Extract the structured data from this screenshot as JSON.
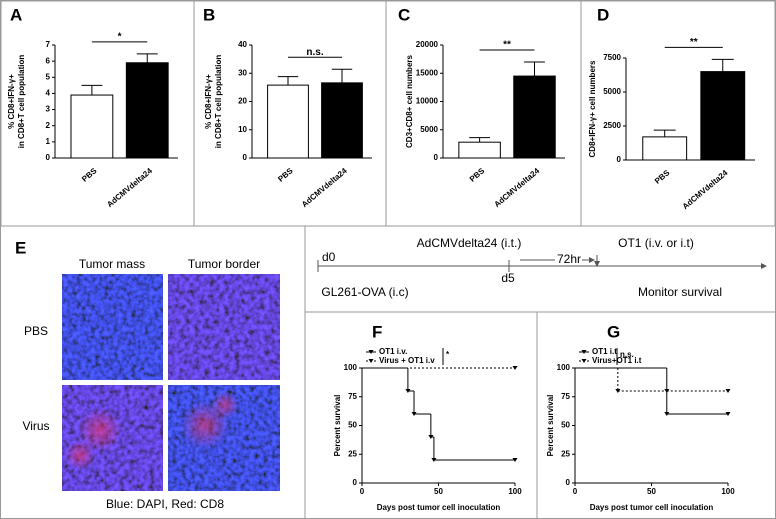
{
  "chart_data": [
    {
      "type": "bar",
      "panel": "A",
      "y_label": [
        "% CD8+IFN-γ+",
        "in CD8+T cell population"
      ],
      "categories": [
        "PBS",
        "AdCMVdelta24"
      ],
      "values": [
        3.9,
        5.9
      ],
      "errors": [
        0.6,
        0.55
      ],
      "colors": [
        "#ffffff",
        "#000000"
      ],
      "ylim": [
        0,
        7
      ],
      "yticks": [
        0,
        1,
        2,
        3,
        4,
        5,
        6,
        7
      ],
      "significance": "*"
    },
    {
      "type": "bar",
      "panel": "B",
      "y_label": [
        "% CD8+IFN-γ+",
        "in CD8+T cell population"
      ],
      "categories": [
        "PBS",
        "AdCMVdelta24"
      ],
      "values": [
        25.8,
        26.6
      ],
      "errors": [
        3,
        4.8
      ],
      "colors": [
        "#ffffff",
        "#000000"
      ],
      "ylim": [
        0,
        40
      ],
      "yticks": [
        0,
        10,
        20,
        30,
        40
      ],
      "significance": "n.s."
    },
    {
      "type": "bar",
      "panel": "C",
      "y_label": [
        "CD3+CD8+ cell numbers"
      ],
      "categories": [
        "PBS",
        "AdCMVdelta24"
      ],
      "values": [
        2800,
        14500
      ],
      "errors": [
        800,
        2500
      ],
      "colors": [
        "#ffffff",
        "#000000"
      ],
      "ylim": [
        0,
        20000
      ],
      "yticks": [
        0,
        5000,
        10000,
        15000,
        20000
      ],
      "significance": "**"
    },
    {
      "type": "bar",
      "panel": "D",
      "y_label": [
        "CD8+IFN-γ+ cell numbers"
      ],
      "categories": [
        "PBS",
        "AdCMVdelta24"
      ],
      "values": [
        1700,
        6500
      ],
      "errors": [
        500,
        900
      ],
      "colors": [
        "#ffffff",
        "#000000"
      ],
      "ylim": [
        0,
        7500
      ],
      "yticks": [
        0,
        2500,
        5000,
        7500
      ],
      "significance": "**"
    },
    {
      "type": "step",
      "panel": "F",
      "x_label": "Days post tumor cell inoculation",
      "y_label": [
        "Percent survival"
      ],
      "xlim": [
        0,
        100
      ],
      "xticks": [
        0,
        50,
        100
      ],
      "ylim": [
        0,
        100
      ],
      "yticks": [
        0,
        25,
        50,
        75,
        100
      ],
      "significance": "*",
      "series": [
        {
          "name": "OT1 i.v.",
          "color": "#000000",
          "line_style": "solid",
          "x": [
            0,
            30,
            34,
            45,
            47,
            100
          ],
          "values": [
            100,
            80,
            60,
            40,
            20,
            20
          ]
        },
        {
          "name": "Virus + OT1 i.v",
          "color": "#000000",
          "line_style": "dashed",
          "x": [
            0,
            100
          ],
          "values": [
            100,
            100
          ]
        }
      ]
    },
    {
      "type": "step",
      "panel": "G",
      "x_label": "Days post tumor cell inoculation",
      "y_label": [
        "Percent survival"
      ],
      "xlim": [
        0,
        100
      ],
      "xticks": [
        0,
        50,
        100
      ],
      "ylim": [
        0,
        100
      ],
      "yticks": [
        0,
        25,
        50,
        75,
        100
      ],
      "significance": "n.s.",
      "series": [
        {
          "name": "OT1 i.t",
          "color": "#000000",
          "line_style": "solid",
          "x": [
            0,
            60,
            100
          ],
          "values": [
            100,
            60,
            60
          ]
        },
        {
          "name": "Virus+OT1 i.t",
          "color": "#000000",
          "line_style": "dashed",
          "x": [
            0,
            28,
            60,
            100
          ],
          "values": [
            100,
            80,
            80,
            80
          ]
        }
      ]
    }
  ],
  "microscopy": {
    "panel": "E",
    "columns": [
      "Tumor mass",
      "Tumor border"
    ],
    "rows": [
      "PBS",
      "Virus"
    ],
    "caption": "Blue: DAPI, Red: CD8"
  },
  "timeline": {
    "start": "d0",
    "treatment": "AdCMVdelta24 (i.t.)",
    "transfer": "OT1 (i.v. or i.t)",
    "day": "d5",
    "interval": "72hr",
    "tumor": "GL261-OVA (i.c)",
    "endpoint": "Monitor survival"
  }
}
